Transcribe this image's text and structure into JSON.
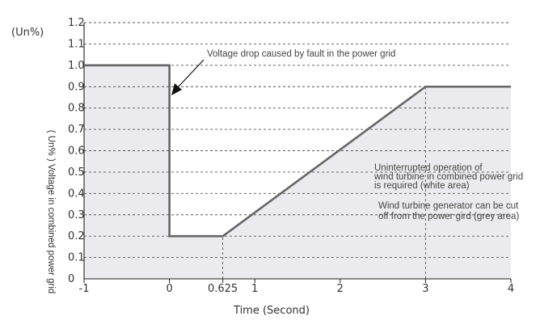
{
  "chart_data": {
    "type": "area",
    "title": "",
    "xlabel": "Time (Second)",
    "ylabel": "( Un% ) Voltage in combined power grid",
    "y_unit": "(Un%)",
    "xlim": [
      -1,
      4
    ],
    "ylim": [
      0,
      1.2
    ],
    "x_ticks": [
      {
        "value": -1,
        "label": "-1"
      },
      {
        "value": 0,
        "label": "0"
      },
      {
        "value": 0.625,
        "label": "0.625"
      },
      {
        "value": 1,
        "label": "1"
      },
      {
        "value": 2,
        "label": "2"
      },
      {
        "value": 3,
        "label": "3"
      },
      {
        "value": 4,
        "label": "4"
      }
    ],
    "y_ticks": [
      {
        "value": 0,
        "label": "0"
      },
      {
        "value": 0.1,
        "label": "0.1"
      },
      {
        "value": 0.2,
        "label": "0.2"
      },
      {
        "value": 0.3,
        "label": "0.3"
      },
      {
        "value": 0.4,
        "label": "0.4"
      },
      {
        "value": 0.5,
        "label": "0.5"
      },
      {
        "value": 0.6,
        "label": "0.6"
      },
      {
        "value": 0.7,
        "label": "0.7"
      },
      {
        "value": 0.8,
        "label": "0.8"
      },
      {
        "value": 0.9,
        "label": "0.9"
      },
      {
        "value": 1.0,
        "label": "1.0"
      },
      {
        "value": 1.1,
        "label": "1.1"
      },
      {
        "value": 1.2,
        "label": "1.2"
      }
    ],
    "grid": "horizontal-dashed",
    "series": [
      {
        "x": [
          -1,
          0,
          0,
          0.625,
          3,
          4
        ],
        "y": [
          1.0,
          1.0,
          0.2,
          0.2,
          0.9,
          0.9
        ]
      }
    ],
    "vertical_dashed_at": [
      0.625,
      3
    ],
    "annotations": {
      "fault": "Voltage drop caused by fault in the power grid",
      "white_area": [
        "Uninterrupted operation of",
        "wind turbine in combined power grid",
        "is required (white area)"
      ],
      "grey_area": [
        "Wind turbine generator can be cut",
        "off from the power gird (grey area)"
      ]
    },
    "colors": {
      "line": "#666666",
      "fill": "#ebebef",
      "grid": "#555555",
      "text": "#333333",
      "arrow": "#111111"
    }
  }
}
